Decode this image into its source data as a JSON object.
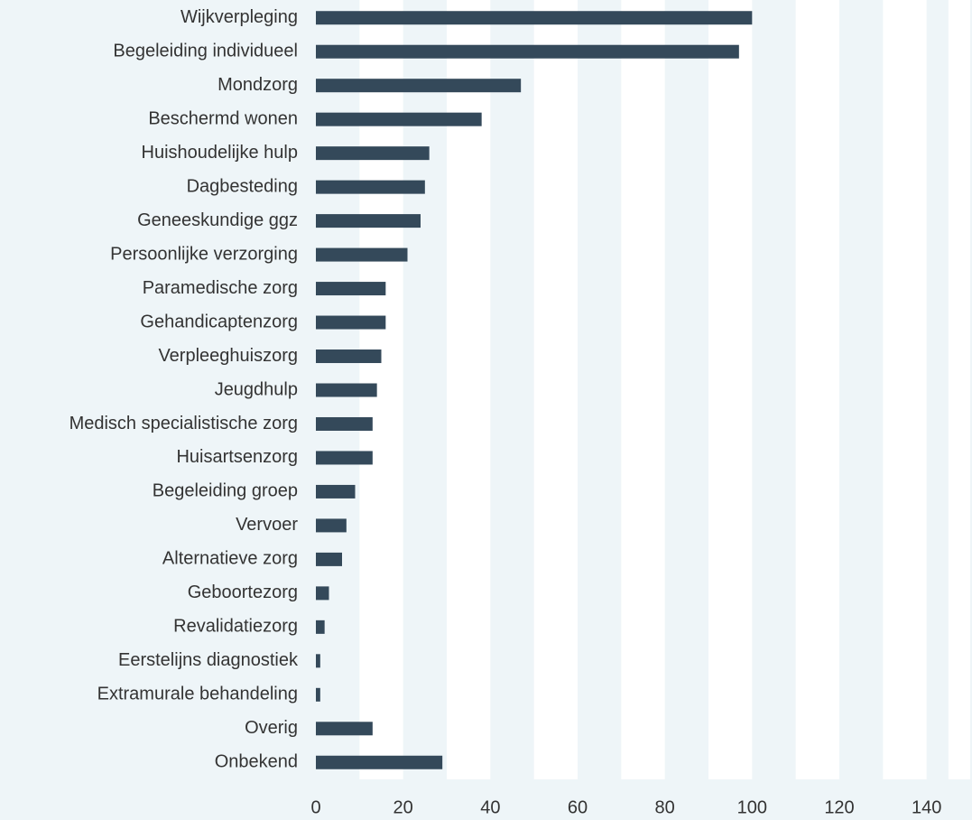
{
  "chart_data": {
    "type": "bar",
    "orientation": "horizontal",
    "categories": [
      "Wijkverpleging",
      "Begeleiding individueel",
      "Mondzorg",
      "Beschermd wonen",
      "Huishoudelijke hulp",
      "Dagbesteding",
      "Geneeskundige ggz",
      "Persoonlijke verzorging",
      "Paramedische zorg",
      "Gehandicaptenzorg",
      "Verpleeghuiszorg",
      "Jeugdhulp",
      "Medisch specialistische zorg",
      "Huisartsenzorg",
      "Begeleiding groep",
      "Vervoer",
      "Alternatieve zorg",
      "Geboortezorg",
      "Revalidatiezorg",
      "Eerstelijns diagnostiek",
      "Extramurale behandeling",
      "Overig",
      "Onbekend"
    ],
    "values": [
      100,
      97,
      47,
      38,
      26,
      25,
      24,
      21,
      16,
      16,
      15,
      14,
      13,
      13,
      9,
      7,
      6,
      3,
      2,
      1,
      1,
      13,
      29
    ],
    "color": "#34495a",
    "xlim": [
      0,
      150
    ],
    "xticks": [
      0,
      20,
      40,
      60,
      80,
      100,
      120,
      140
    ],
    "grid": true
  }
}
